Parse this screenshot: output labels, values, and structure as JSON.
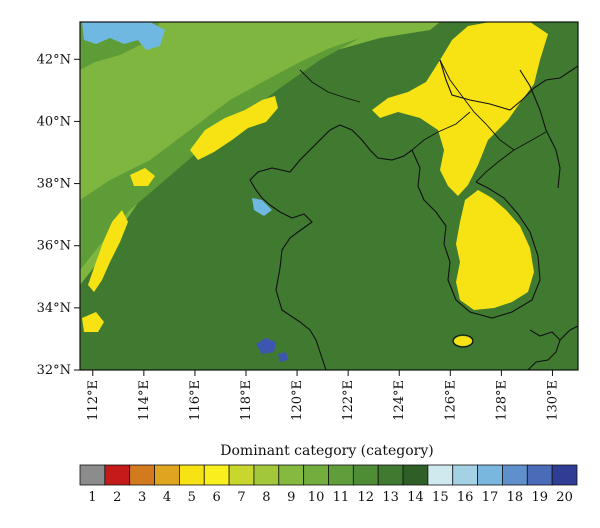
{
  "map": {
    "lat_labels": [
      "42°N",
      "40°N",
      "38°N",
      "36°N",
      "34°N",
      "32°N"
    ],
    "lon_labels": [
      "112°E",
      "114°E",
      "116°E",
      "118°E",
      "120°E",
      "122°E",
      "124°E",
      "126°E",
      "128°E",
      "130°E"
    ],
    "lat_range": [
      32,
      43.2
    ],
    "lon_range": [
      111.5,
      131
    ]
  },
  "legend": {
    "title": "Dominant category (category)",
    "categories": [
      "1",
      "2",
      "3",
      "4",
      "5",
      "6",
      "7",
      "8",
      "9",
      "10",
      "11",
      "12",
      "13",
      "14",
      "15",
      "16",
      "17",
      "18",
      "19",
      "20"
    ],
    "colors": [
      "#8c8c8c",
      "#c41a1a",
      "#d47a1e",
      "#e0a51f",
      "#f7e313",
      "#f9ef1e",
      "#c9d62e",
      "#a3c73a",
      "#86b940",
      "#73ad3e",
      "#5f9e3a",
      "#4e8c36",
      "#3f7a30",
      "#2f5f26",
      "#cfe9ee",
      "#a4d2e4",
      "#7ab7de",
      "#5f90cc",
      "#4a6bb8",
      "#2f3e94"
    ]
  },
  "colors": {
    "background_forest": "#3f7a30",
    "grassland": "#7fb640",
    "mixed": "#5e9c37",
    "cropland": "#f7e313",
    "water": "#6fb8e2",
    "deep_water": "#3e56b0",
    "coastline": "#111111"
  }
}
